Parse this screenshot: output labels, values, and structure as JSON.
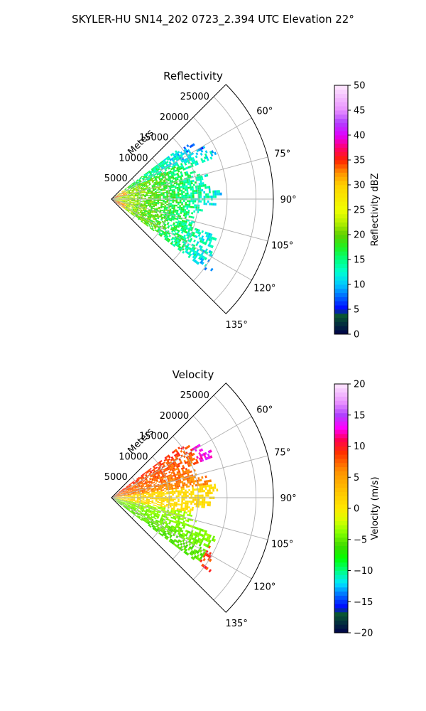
{
  "suptitle": "SKYLER-HU  SN14_202  0723_2.394 UTC Elevation 22°",
  "chart_data": [
    {
      "type": "heatmap",
      "projection": "polar-sector",
      "title": "Reflectivity",
      "range_label": "Meters",
      "range_max": 28000,
      "range_ticks": [
        5000,
        10000,
        15000,
        20000,
        25000
      ],
      "range_tick_labels": [
        "5000",
        "10000",
        "15000",
        "20000",
        "25000"
      ],
      "azimuth_min_deg": 45,
      "azimuth_max_deg": 135,
      "azimuth_ticks_deg": [
        60,
        75,
        90,
        105,
        120,
        135
      ],
      "azimuth_tick_labels": [
        "60°",
        "75°",
        "90°",
        "105°",
        "120°",
        "135°"
      ],
      "grid": true,
      "colorbar": {
        "label": "Reflectivity dBZ",
        "min": 0,
        "max": 50,
        "ticks": [
          0,
          5,
          10,
          15,
          20,
          25,
          30,
          35,
          40,
          45,
          50
        ],
        "tick_labels": [
          "0",
          "5",
          "10",
          "15",
          "20",
          "25",
          "30",
          "35",
          "40",
          "45",
          "50"
        ],
        "stops": [
          {
            "v": 0,
            "c": "#00004a"
          },
          {
            "v": 2.5,
            "c": "#043a3a"
          },
          {
            "v": 4,
            "c": "#0a5a30"
          },
          {
            "v": 5,
            "c": "#0000ff"
          },
          {
            "v": 7.5,
            "c": "#0066ff"
          },
          {
            "v": 10,
            "c": "#00c8ff"
          },
          {
            "v": 12.5,
            "c": "#00ffd0"
          },
          {
            "v": 15,
            "c": "#00ff80"
          },
          {
            "v": 17.5,
            "c": "#20f020"
          },
          {
            "v": 20,
            "c": "#60d000"
          },
          {
            "v": 22.5,
            "c": "#b8f000"
          },
          {
            "v": 25,
            "c": "#f0ff00"
          },
          {
            "v": 30,
            "c": "#ffd000"
          },
          {
            "v": 32.5,
            "c": "#ff9000"
          },
          {
            "v": 35,
            "c": "#ff2000"
          },
          {
            "v": 37.5,
            "c": "#ff0070"
          },
          {
            "v": 40,
            "c": "#e000ff"
          },
          {
            "v": 42.5,
            "c": "#b040ff"
          },
          {
            "v": 45,
            "c": "#e890ff"
          },
          {
            "v": 50,
            "c": "#ffe8ff"
          }
        ]
      },
      "field": "reflectivity"
    },
    {
      "type": "heatmap",
      "projection": "polar-sector",
      "title": "Velocity",
      "range_label": "Meters",
      "range_max": 28000,
      "range_ticks": [
        5000,
        10000,
        15000,
        20000,
        25000
      ],
      "range_tick_labels": [
        "5000",
        "10000",
        "15000",
        "20000",
        "25000"
      ],
      "azimuth_min_deg": 45,
      "azimuth_max_deg": 135,
      "azimuth_ticks_deg": [
        60,
        75,
        90,
        105,
        120,
        135
      ],
      "azimuth_tick_labels": [
        "60°",
        "75°",
        "90°",
        "105°",
        "120°",
        "135°"
      ],
      "grid": true,
      "colorbar": {
        "label": "Velocity (m/s)",
        "min": -20,
        "max": 20,
        "ticks": [
          -20,
          -15,
          -10,
          -5,
          0,
          5,
          10,
          15,
          20
        ],
        "tick_labels": [
          "−20",
          "−15",
          "−10",
          "−5",
          "0",
          "5",
          "10",
          "15",
          "20"
        ],
        "stops": [
          {
            "v": -20,
            "c": "#00004a"
          },
          {
            "v": -18,
            "c": "#043a3a"
          },
          {
            "v": -16.8,
            "c": "#0a5a30"
          },
          {
            "v": -16,
            "c": "#0000ff"
          },
          {
            "v": -14,
            "c": "#0066ff"
          },
          {
            "v": -12,
            "c": "#00e8ff"
          },
          {
            "v": -10,
            "c": "#00ff80"
          },
          {
            "v": -8,
            "c": "#00ff00"
          },
          {
            "v": -6,
            "c": "#40d800"
          },
          {
            "v": -4,
            "c": "#80ff00"
          },
          {
            "v": -2,
            "c": "#d8ff00"
          },
          {
            "v": 0,
            "c": "#ffe800"
          },
          {
            "v": 3,
            "c": "#ffc000"
          },
          {
            "v": 6,
            "c": "#ff9000"
          },
          {
            "v": 9,
            "c": "#ff3000"
          },
          {
            "v": 11,
            "c": "#ff0050"
          },
          {
            "v": 13,
            "c": "#ff00ff"
          },
          {
            "v": 15,
            "c": "#b040ff"
          },
          {
            "v": 17,
            "c": "#e890ff"
          },
          {
            "v": 20,
            "c": "#ffe8ff"
          }
        ]
      },
      "field": "velocity"
    }
  ]
}
